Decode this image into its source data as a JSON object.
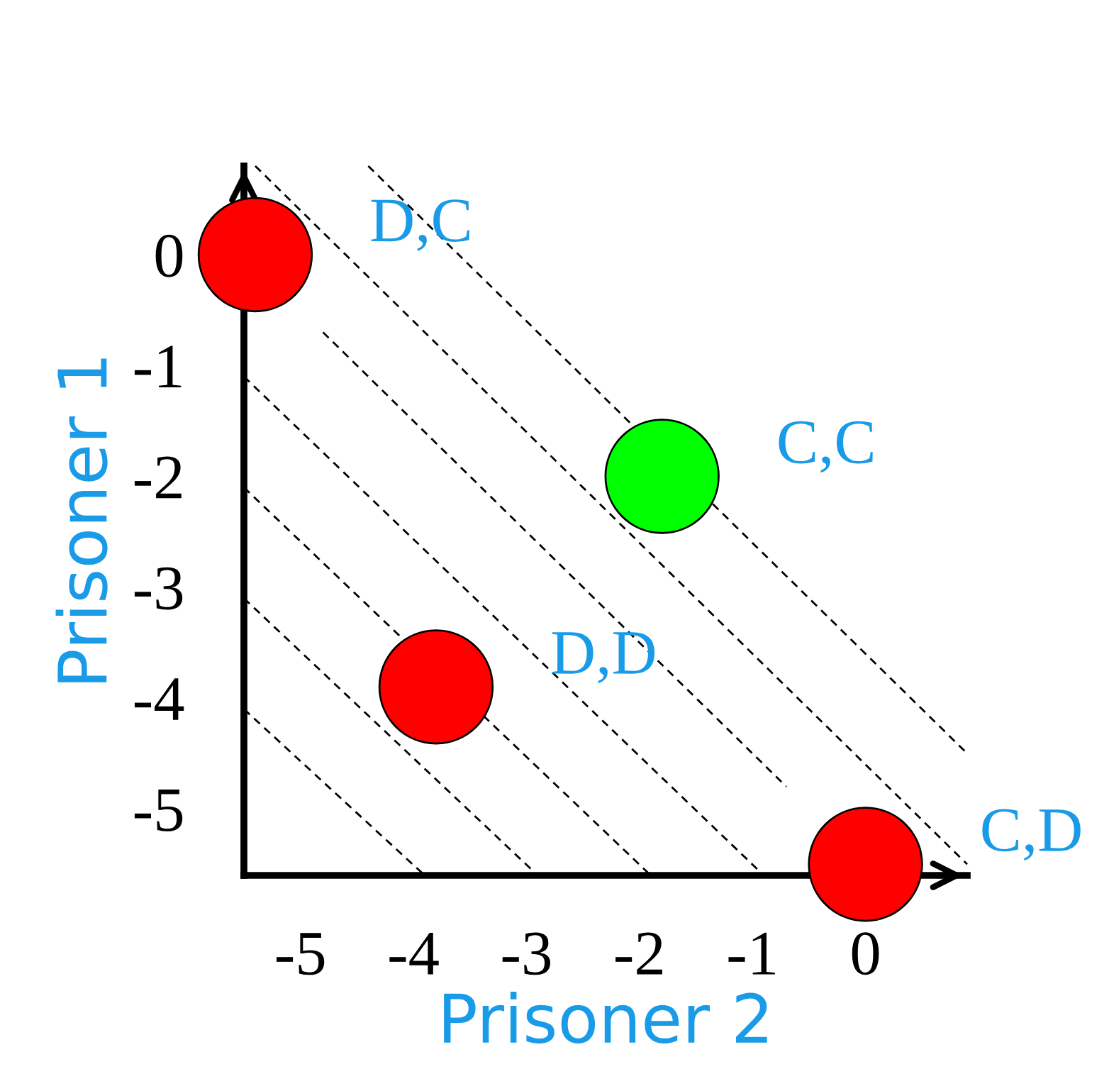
{
  "chart_data": {
    "type": "scatter",
    "xlabel": "Prisoner 2",
    "ylabel": "Prisoner 1",
    "xlim": [
      -5.5,
      0.9
    ],
    "ylim": [
      -5.6,
      0.8
    ],
    "xticks": [
      -5,
      -4,
      -3,
      -2,
      -1,
      0
    ],
    "yticks": [
      0,
      -1,
      -2,
      -3,
      -4,
      -5
    ],
    "grid": false,
    "legend": false,
    "series": [
      {
        "marker": "circle",
        "x": [
          -5.4,
          -1.8,
          -3.8,
          0
        ],
        "values": [
          0,
          -2,
          -3.9,
          -5.5
        ],
        "colors": [
          "#ff0000",
          "#00ff00",
          "#ff0000",
          "#ff0000"
        ]
      },
      {
        "type": "line",
        "marker": "none",
        "x": [
          -5.5,
          -3.9
        ],
        "values": [
          -4.1,
          -5.6
        ],
        "color": "#000000",
        "line_style": "dashed"
      },
      {
        "type": "line",
        "marker": "none",
        "x": [
          -5.5,
          -2.9
        ],
        "values": [
          -3.1,
          -5.6
        ],
        "color": "#000000",
        "line_style": "dashed"
      },
      {
        "type": "line",
        "marker": "none",
        "x": [
          -5.5,
          -1.9
        ],
        "values": [
          -2.1,
          -5.6
        ],
        "color": "#000000",
        "line_style": "dashed"
      },
      {
        "type": "line",
        "marker": "none",
        "x": [
          -5.5,
          -0.9
        ],
        "values": [
          -1.1,
          -5.6
        ],
        "color": "#000000",
        "line_style": "dashed"
      },
      {
        "type": "line",
        "marker": "none",
        "x": [
          -4.8,
          -0.7
        ],
        "values": [
          -0.7,
          -4.8
        ],
        "color": "#000000",
        "line_style": "dashed"
      },
      {
        "type": "line",
        "marker": "none",
        "x": [
          -5.4,
          0.9
        ],
        "values": [
          0.8,
          -5.5
        ],
        "color": "#000000",
        "line_style": "dashed"
      },
      {
        "type": "line",
        "marker": "none",
        "x": [
          -4.4,
          0.9
        ],
        "values": [
          0.8,
          -4.5
        ],
        "color": "#000000",
        "line_style": "dashed"
      }
    ],
    "annotations": [
      {
        "text": "D,C",
        "x": -5.4,
        "y": 0
      },
      {
        "text": "C,C",
        "x": -1.8,
        "y": -2
      },
      {
        "text": "D,D",
        "x": -3.8,
        "y": -3.9
      },
      {
        "text": "C,D",
        "x": 0,
        "y": -5.5
      }
    ]
  }
}
